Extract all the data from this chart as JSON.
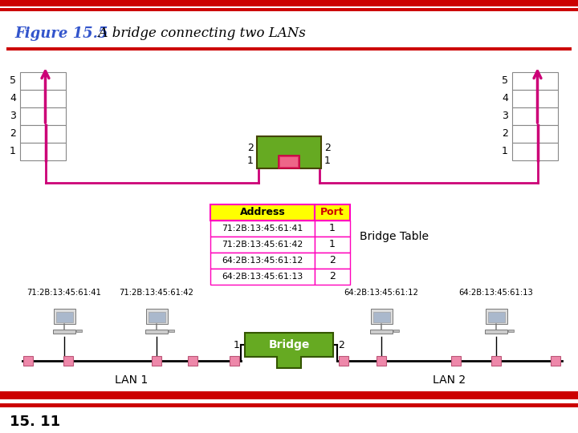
{
  "title_bold": "Figure 15.5",
  "title_italic": "  A bridge connecting two LANs",
  "title_color": "#3355cc",
  "bg_color": "#ffffff",
  "border_color": "#cc0000",
  "footer_text": "15. 11",
  "table_header_bg": "#ffff00",
  "table_border": "#ff00bb",
  "bridge_green": "#66aa22",
  "pink_color": "#ee88aa",
  "magenta_color": "#cc0077",
  "table_addresses": [
    "71:2B:13:45:61:41",
    "71:2B:13:45:61:42",
    "64:2B:13:45:61:12",
    "64:2B:13:45:61:13"
  ],
  "table_ports": [
    "1",
    "1",
    "2",
    "2"
  ],
  "mac_labels": [
    "71:2B:13:45:61:41",
    "71:2B:13:45:61:42",
    "64:2B:13:45:61:12",
    "64:2B:13:45:61:13"
  ],
  "lan1_label": "LAN 1",
  "lan2_label": "LAN 2",
  "bridge_label": "Bridge"
}
